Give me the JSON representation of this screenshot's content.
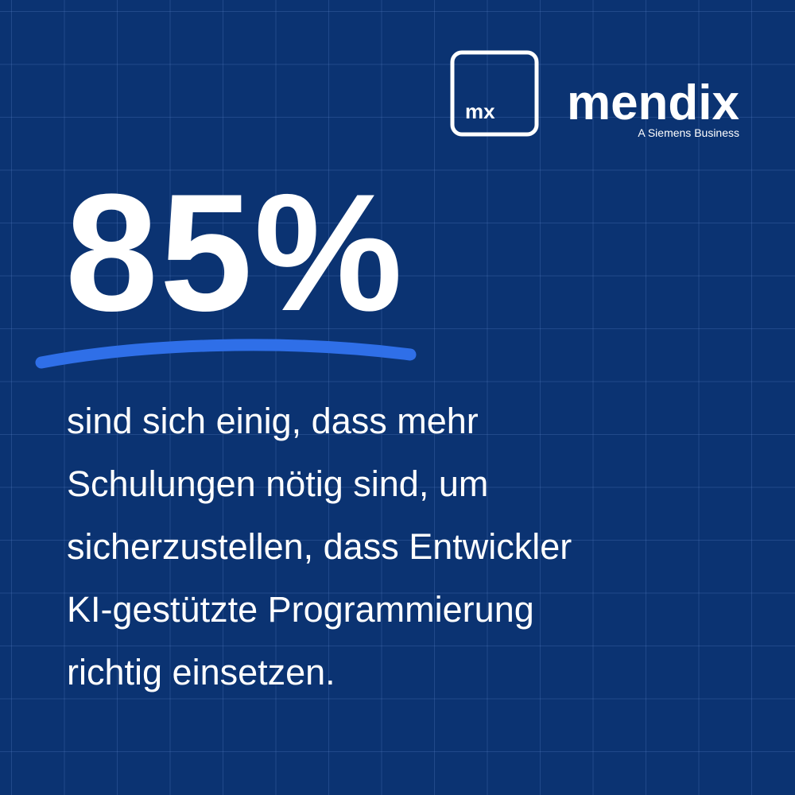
{
  "logo": {
    "mark": "mx",
    "brand": "mendix",
    "tagline": "A Siemens Business"
  },
  "stat": "85%",
  "body": {
    "lines": [
      "sind sich einig, dass mehr",
      "Schulungen nötig sind, um",
      "sicherzustellen, dass Entwickler",
      "KI-gestützte Programmierung",
      "richtig einsetzen."
    ]
  }
}
